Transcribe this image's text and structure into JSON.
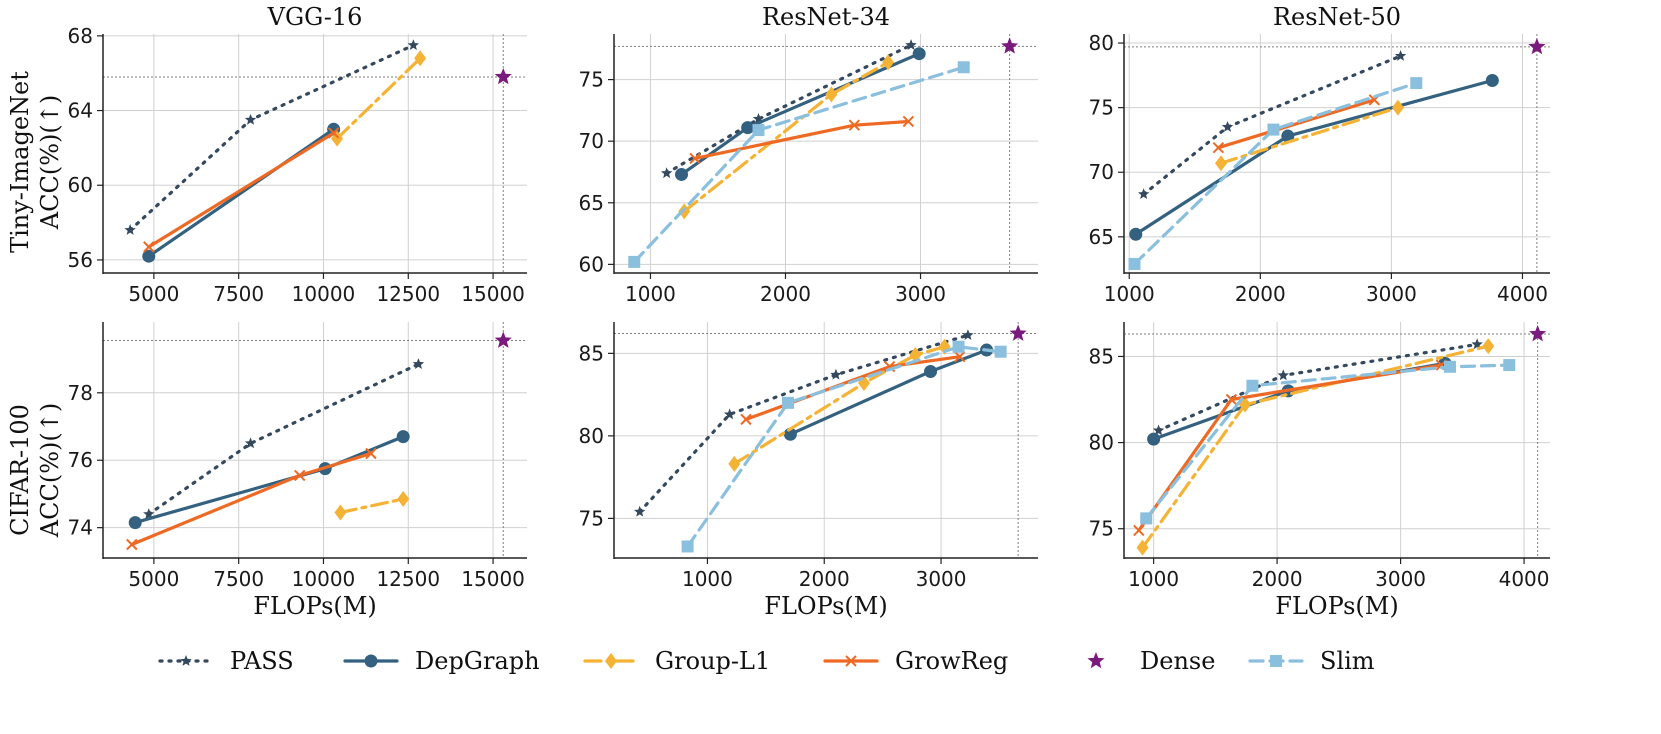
{
  "legend": [
    {
      "name": "PASS",
      "color": "#34495e",
      "dash": "dotted",
      "marker": "star-small"
    },
    {
      "name": "DepGraph",
      "color": "#33617f",
      "dash": "solid",
      "marker": "circle"
    },
    {
      "name": "Group-L1",
      "color": "#f5b335",
      "dash": "dashdot",
      "marker": "diamond"
    },
    {
      "name": "GrowReg",
      "color": "#ee6a24",
      "dash": "solid",
      "marker": "x"
    },
    {
      "name": "Dense",
      "color": "#7a1a7c",
      "dash": "none",
      "marker": "star-big"
    },
    {
      "name": "Slim",
      "color": "#8bbfde",
      "dash": "dashed",
      "marker": "square"
    }
  ],
  "row_labels": [
    {
      "line1": "Tiny-ImageNet",
      "line2": "ACC(%)(↑)"
    },
    {
      "line1": "CIFAR-100",
      "line2": "ACC(%)(↑)"
    }
  ],
  "chart_data": [
    {
      "type": "line",
      "row": 0,
      "col": 0,
      "title": "VGG-16",
      "xlabel": "",
      "ylabel": "",
      "xlim": [
        3500,
        16000
      ],
      "ylim": [
        55.3,
        68.1
      ],
      "xticks": [
        5000,
        7500,
        10000,
        12500,
        15000
      ],
      "yticks": [
        56,
        60,
        64,
        68
      ],
      "grid": true,
      "dense": {
        "x": 15300,
        "y": 65.8
      },
      "series": [
        {
          "name": "PASS",
          "points": [
            [
              4300,
              57.6
            ],
            [
              7850,
              63.5
            ],
            [
              12650,
              67.5
            ]
          ]
        },
        {
          "name": "DepGraph",
          "points": [
            [
              4850,
              56.2
            ],
            [
              10300,
              63.0
            ]
          ]
        },
        {
          "name": "Group-L1",
          "points": [
            [
              10400,
              62.5
            ],
            [
              12850,
              66.8
            ]
          ]
        },
        {
          "name": "GrowReg",
          "points": [
            [
              4850,
              56.7
            ],
            [
              10300,
              62.8
            ]
          ]
        }
      ]
    },
    {
      "type": "line",
      "row": 0,
      "col": 1,
      "title": "ResNet-34",
      "xlabel": "",
      "ylabel": "",
      "xlim": [
        730,
        3870
      ],
      "ylim": [
        59.3,
        78.7
      ],
      "xticks": [
        1000,
        2000,
        3000
      ],
      "yticks": [
        60,
        65,
        70,
        75
      ],
      "grid": true,
      "dense": {
        "x": 3660,
        "y": 77.7
      },
      "series": [
        {
          "name": "PASS",
          "points": [
            [
              1120,
              67.4
            ],
            [
              1800,
              71.8
            ],
            [
              2930,
              77.8
            ]
          ]
        },
        {
          "name": "DepGraph",
          "points": [
            [
              1230,
              67.3
            ],
            [
              1720,
              71.1
            ],
            [
              2990,
              77.1
            ]
          ]
        },
        {
          "name": "Group-L1",
          "points": [
            [
              1250,
              64.3
            ],
            [
              2340,
              73.8
            ],
            [
              2760,
              76.4
            ]
          ]
        },
        {
          "name": "GrowReg",
          "points": [
            [
              1330,
              68.6
            ],
            [
              2510,
              71.3
            ],
            [
              2910,
              71.6
            ]
          ]
        },
        {
          "name": "Slim",
          "points": [
            [
              880,
              60.2
            ],
            [
              1800,
              70.9
            ],
            [
              3320,
              76.0
            ]
          ]
        }
      ]
    },
    {
      "type": "line",
      "row": 0,
      "col": 2,
      "title": "ResNet-50",
      "xlabel": "",
      "ylabel": "",
      "xlim": [
        960,
        4210
      ],
      "ylim": [
        62.2,
        80.7
      ],
      "xticks": [
        1000,
        2000,
        3000,
        4000
      ],
      "yticks": [
        65,
        70,
        75,
        80
      ],
      "grid": true,
      "dense": {
        "x": 4110,
        "y": 79.7
      },
      "series": [
        {
          "name": "PASS",
          "points": [
            [
              1110,
              68.3
            ],
            [
              1750,
              73.5
            ],
            [
              3070,
              79.0
            ]
          ]
        },
        {
          "name": "DepGraph",
          "points": [
            [
              1050,
              65.2
            ],
            [
              2210,
              72.8
            ],
            [
              3770,
              77.1
            ]
          ]
        },
        {
          "name": "Group-L1",
          "points": [
            [
              1700,
              70.7
            ],
            [
              3050,
              75.0
            ]
          ]
        },
        {
          "name": "GrowReg",
          "points": [
            [
              1680,
              71.9
            ],
            [
              2870,
              75.6
            ]
          ]
        },
        {
          "name": "Slim",
          "points": [
            [
              1040,
              62.9
            ],
            [
              2100,
              73.3
            ],
            [
              3190,
              76.9
            ]
          ]
        }
      ]
    },
    {
      "type": "line",
      "row": 1,
      "col": 0,
      "title": "",
      "xlabel": "FLOPs(M)",
      "ylabel": "",
      "xlim": [
        3500,
        16000
      ],
      "ylim": [
        73.1,
        80.1
      ],
      "xticks": [
        5000,
        7500,
        10000,
        12500,
        15000
      ],
      "yticks": [
        74,
        76,
        78
      ],
      "grid": true,
      "dense": {
        "x": 15300,
        "y": 79.55
      },
      "series": [
        {
          "name": "PASS",
          "points": [
            [
              4850,
              74.4
            ],
            [
              7850,
              76.5
            ],
            [
              12800,
              78.85
            ]
          ]
        },
        {
          "name": "DepGraph",
          "points": [
            [
              4450,
              74.15
            ],
            [
              10050,
              75.75
            ],
            [
              12350,
              76.7
            ]
          ]
        },
        {
          "name": "Group-L1",
          "points": [
            [
              10500,
              74.45
            ],
            [
              12350,
              74.85
            ]
          ]
        },
        {
          "name": "GrowReg",
          "points": [
            [
              4350,
              73.5
            ],
            [
              9300,
              75.55
            ],
            [
              11400,
              76.2
            ]
          ]
        }
      ]
    },
    {
      "type": "line",
      "row": 1,
      "col": 1,
      "title": "",
      "xlabel": "FLOPs(M)",
      "ylabel": "",
      "xlim": [
        200,
        3830
      ],
      "ylim": [
        72.6,
        86.9
      ],
      "xticks": [
        1000,
        2000,
        3000
      ],
      "yticks": [
        75,
        80,
        85
      ],
      "grid": true,
      "dense": {
        "x": 3660,
        "y": 86.2
      },
      "series": [
        {
          "name": "PASS",
          "points": [
            [
              420,
              75.4
            ],
            [
              1190,
              81.3
            ],
            [
              2100,
              83.7
            ],
            [
              3230,
              86.1
            ]
          ]
        },
        {
          "name": "DepGraph",
          "points": [
            [
              1710,
              80.1
            ],
            [
              2910,
              83.9
            ],
            [
              3390,
              85.2
            ]
          ]
        },
        {
          "name": "Group-L1",
          "points": [
            [
              1230,
              78.3
            ],
            [
              2340,
              83.2
            ],
            [
              2780,
              84.9
            ],
            [
              3030,
              85.4
            ]
          ]
        },
        {
          "name": "GrowReg",
          "points": [
            [
              1330,
              81.0
            ],
            [
              2560,
              84.2
            ],
            [
              3160,
              84.8
            ]
          ]
        },
        {
          "name": "Slim",
          "points": [
            [
              830,
              73.3
            ],
            [
              1690,
              82.0
            ],
            [
              3150,
              85.4
            ],
            [
              3510,
              85.1
            ]
          ]
        }
      ]
    },
    {
      "type": "line",
      "row": 1,
      "col": 2,
      "title": "",
      "xlabel": "FLOPs(M)",
      "ylabel": "",
      "xlim": [
        760,
        4210
      ],
      "ylim": [
        73.3,
        87.0
      ],
      "xticks": [
        1000,
        2000,
        3000,
        4000
      ],
      "yticks": [
        75,
        80,
        85
      ],
      "grid": true,
      "dense": {
        "x": 4110,
        "y": 86.3
      },
      "series": [
        {
          "name": "PASS",
          "points": [
            [
              1040,
              80.7
            ],
            [
              2050,
              83.9
            ],
            [
              3620,
              85.7
            ]
          ]
        },
        {
          "name": "DepGraph",
          "points": [
            [
              1000,
              80.2
            ],
            [
              2090,
              83.0
            ],
            [
              3360,
              84.6
            ]
          ]
        },
        {
          "name": "Group-L1",
          "points": [
            [
              910,
              73.9
            ],
            [
              1740,
              82.2
            ],
            [
              3710,
              85.6
            ]
          ]
        },
        {
          "name": "GrowReg",
          "points": [
            [
              880,
              74.9
            ],
            [
              1630,
              82.5
            ],
            [
              3330,
              84.5
            ]
          ]
        },
        {
          "name": "Slim",
          "points": [
            [
              940,
              75.6
            ],
            [
              1800,
              83.3
            ],
            [
              3400,
              84.4
            ],
            [
              3880,
              84.5
            ]
          ]
        }
      ]
    }
  ]
}
